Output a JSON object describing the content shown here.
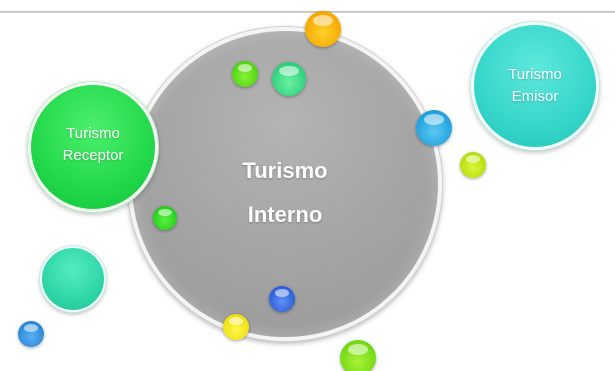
{
  "diagram": {
    "center_node": {
      "line1": "Turismo",
      "line2": "Interno"
    },
    "left_node": {
      "line1": "Turismo",
      "line2": "Receptor"
    },
    "right_node": {
      "line1": "Turismo",
      "line2": "Emisor"
    }
  },
  "colors": {
    "center": "#a6a6a6",
    "receptor": "#22d84a",
    "emisor": "#36d6cb",
    "decor_teal": "#2fd6a8"
  }
}
